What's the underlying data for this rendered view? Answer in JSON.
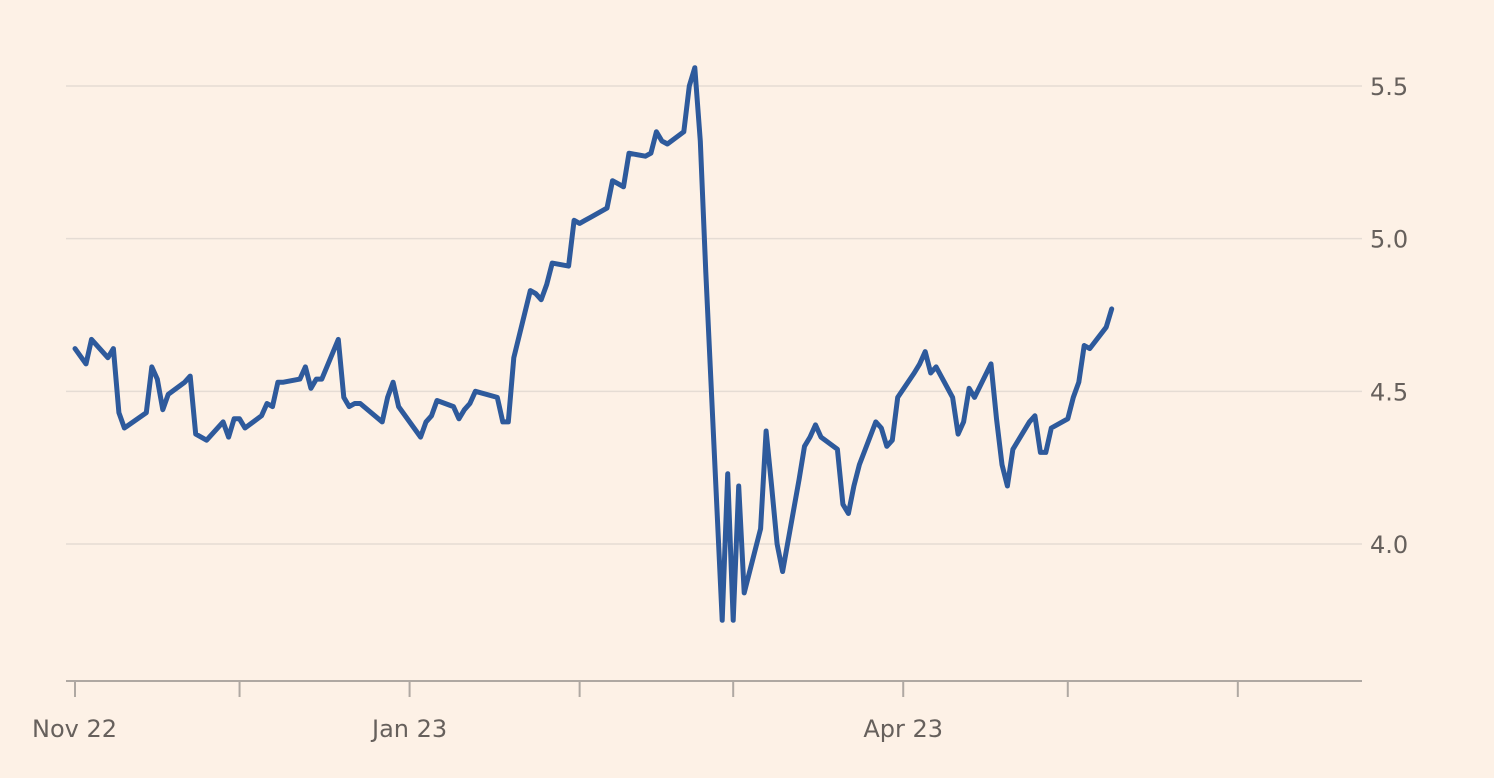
{
  "chart_data": {
    "type": "line",
    "title": "",
    "xlabel": "",
    "ylabel": "",
    "x_range": [
      "2022-11-01",
      "2023-06-22"
    ],
    "ylim": [
      3.55,
      5.65
    ],
    "grid": true,
    "legend": "none",
    "y_ticks": [
      {
        "value": 5.5,
        "label": "5.5"
      },
      {
        "value": 5.0,
        "label": "5.0"
      },
      {
        "value": 4.5,
        "label": "4.5"
      },
      {
        "value": 4.0,
        "label": "4.0"
      }
    ],
    "x_ticks": [
      {
        "date": "2022-11-01",
        "label": "Nov 22"
      },
      {
        "date": "2022-12-01",
        "label": ""
      },
      {
        "date": "2023-01-01",
        "label": "Jan 23"
      },
      {
        "date": "2023-02-01",
        "label": ""
      },
      {
        "date": "2023-03-01",
        "label": ""
      },
      {
        "date": "2023-04-01",
        "label": "Apr 23"
      },
      {
        "date": "2023-05-01",
        "label": ""
      },
      {
        "date": "2023-06-01",
        "label": ""
      }
    ],
    "series": [
      {
        "name": "",
        "color": "#2E5A9C",
        "points": [
          [
            "2022-11-01",
            4.64
          ],
          [
            "2022-11-03",
            4.59
          ],
          [
            "2022-11-04",
            4.67
          ],
          [
            "2022-11-07",
            4.61
          ],
          [
            "2022-11-08",
            4.64
          ],
          [
            "2022-11-09",
            4.43
          ],
          [
            "2022-11-10",
            4.38
          ],
          [
            "2022-11-14",
            4.43
          ],
          [
            "2022-11-15",
            4.58
          ],
          [
            "2022-11-16",
            4.54
          ],
          [
            "2022-11-17",
            4.44
          ],
          [
            "2022-11-18",
            4.49
          ],
          [
            "2022-11-21",
            4.53
          ],
          [
            "2022-11-22",
            4.55
          ],
          [
            "2022-11-23",
            4.36
          ],
          [
            "2022-11-25",
            4.34
          ],
          [
            "2022-11-28",
            4.4
          ],
          [
            "2022-11-29",
            4.35
          ],
          [
            "2022-11-30",
            4.41
          ],
          [
            "2022-12-01",
            4.41
          ],
          [
            "2022-12-02",
            4.38
          ],
          [
            "2022-12-05",
            4.42
          ],
          [
            "2022-12-06",
            4.46
          ],
          [
            "2022-12-07",
            4.45
          ],
          [
            "2022-12-08",
            4.53
          ],
          [
            "2022-12-09",
            4.53
          ],
          [
            "2022-12-12",
            4.54
          ],
          [
            "2022-12-13",
            4.58
          ],
          [
            "2022-12-14",
            4.51
          ],
          [
            "2022-12-15",
            4.54
          ],
          [
            "2022-12-16",
            4.54
          ],
          [
            "2022-12-19",
            4.67
          ],
          [
            "2022-12-20",
            4.48
          ],
          [
            "2022-12-21",
            4.45
          ],
          [
            "2022-12-22",
            4.46
          ],
          [
            "2022-12-23",
            4.46
          ],
          [
            "2022-12-27",
            4.4
          ],
          [
            "2022-12-28",
            4.48
          ],
          [
            "2022-12-29",
            4.53
          ],
          [
            "2022-12-30",
            4.45
          ],
          [
            "2023-01-03",
            4.35
          ],
          [
            "2023-01-04",
            4.4
          ],
          [
            "2023-01-05",
            4.42
          ],
          [
            "2023-01-06",
            4.47
          ],
          [
            "2023-01-09",
            4.45
          ],
          [
            "2023-01-10",
            4.41
          ],
          [
            "2023-01-11",
            4.44
          ],
          [
            "2023-01-12",
            4.46
          ],
          [
            "2023-01-13",
            4.5
          ],
          [
            "2023-01-17",
            4.48
          ],
          [
            "2023-01-18",
            4.4
          ],
          [
            "2023-01-19",
            4.4
          ],
          [
            "2023-01-20",
            4.61
          ],
          [
            "2023-01-23",
            4.83
          ],
          [
            "2023-01-24",
            4.82
          ],
          [
            "2023-01-25",
            4.8
          ],
          [
            "2023-01-26",
            4.85
          ],
          [
            "2023-01-27",
            4.92
          ],
          [
            "2023-01-30",
            4.91
          ],
          [
            "2023-01-31",
            5.06
          ],
          [
            "2023-02-01",
            5.05
          ],
          [
            "2023-02-02",
            5.06
          ],
          [
            "2023-02-03",
            5.07
          ],
          [
            "2023-02-06",
            5.1
          ],
          [
            "2023-02-07",
            5.19
          ],
          [
            "2023-02-08",
            5.18
          ],
          [
            "2023-02-09",
            5.17
          ],
          [
            "2023-02-10",
            5.28
          ],
          [
            "2023-02-13",
            5.27
          ],
          [
            "2023-02-14",
            5.28
          ],
          [
            "2023-02-15",
            5.35
          ],
          [
            "2023-02-16",
            5.32
          ],
          [
            "2023-02-17",
            5.31
          ],
          [
            "2023-02-20",
            5.35
          ],
          [
            "2023-02-21",
            5.5
          ],
          [
            "2023-02-22",
            5.56
          ],
          [
            "2023-02-23",
            5.32
          ],
          [
            "2023-02-24",
            4.89
          ],
          [
            "2023-02-27",
            3.75
          ],
          [
            "2023-02-28",
            4.23
          ],
          [
            "2023-03-01",
            3.75
          ],
          [
            "2023-03-02",
            4.19
          ],
          [
            "2023-03-03",
            3.84
          ],
          [
            "2023-03-06",
            4.05
          ],
          [
            "2023-03-07",
            4.37
          ],
          [
            "2023-03-08",
            4.19
          ],
          [
            "2023-03-09",
            4.0
          ],
          [
            "2023-03-10",
            3.91
          ],
          [
            "2023-03-13",
            4.21
          ],
          [
            "2023-03-14",
            4.32
          ],
          [
            "2023-03-15",
            4.35
          ],
          [
            "2023-03-16",
            4.39
          ],
          [
            "2023-03-17",
            4.35
          ],
          [
            "2023-03-20",
            4.31
          ],
          [
            "2023-03-21",
            4.13
          ],
          [
            "2023-03-22",
            4.1
          ],
          [
            "2023-03-23",
            4.19
          ],
          [
            "2023-03-24",
            4.26
          ],
          [
            "2023-03-27",
            4.4
          ],
          [
            "2023-03-28",
            4.38
          ],
          [
            "2023-03-29",
            4.32
          ],
          [
            "2023-03-30",
            4.34
          ],
          [
            "2023-03-31",
            4.48
          ],
          [
            "2023-04-03",
            4.56
          ],
          [
            "2023-04-04",
            4.59
          ],
          [
            "2023-04-05",
            4.63
          ],
          [
            "2023-04-06",
            4.56
          ],
          [
            "2023-04-07",
            4.58
          ],
          [
            "2023-04-10",
            4.48
          ],
          [
            "2023-04-11",
            4.36
          ],
          [
            "2023-04-12",
            4.4
          ],
          [
            "2023-04-13",
            4.51
          ],
          [
            "2023-04-14",
            4.48
          ],
          [
            "2023-04-17",
            4.59
          ],
          [
            "2023-04-18",
            4.41
          ],
          [
            "2023-04-19",
            4.26
          ],
          [
            "2023-04-20",
            4.19
          ],
          [
            "2023-04-21",
            4.31
          ],
          [
            "2023-04-24",
            4.4
          ],
          [
            "2023-04-25",
            4.42
          ],
          [
            "2023-04-26",
            4.3
          ],
          [
            "2023-04-27",
            4.3
          ],
          [
            "2023-04-28",
            4.38
          ],
          [
            "2023-05-01",
            4.41
          ],
          [
            "2023-05-02",
            4.48
          ],
          [
            "2023-05-03",
            4.53
          ],
          [
            "2023-05-04",
            4.65
          ],
          [
            "2023-05-05",
            4.64
          ],
          [
            "2023-05-08",
            4.71
          ],
          [
            "2023-05-09",
            4.77
          ]
        ]
      }
    ]
  }
}
